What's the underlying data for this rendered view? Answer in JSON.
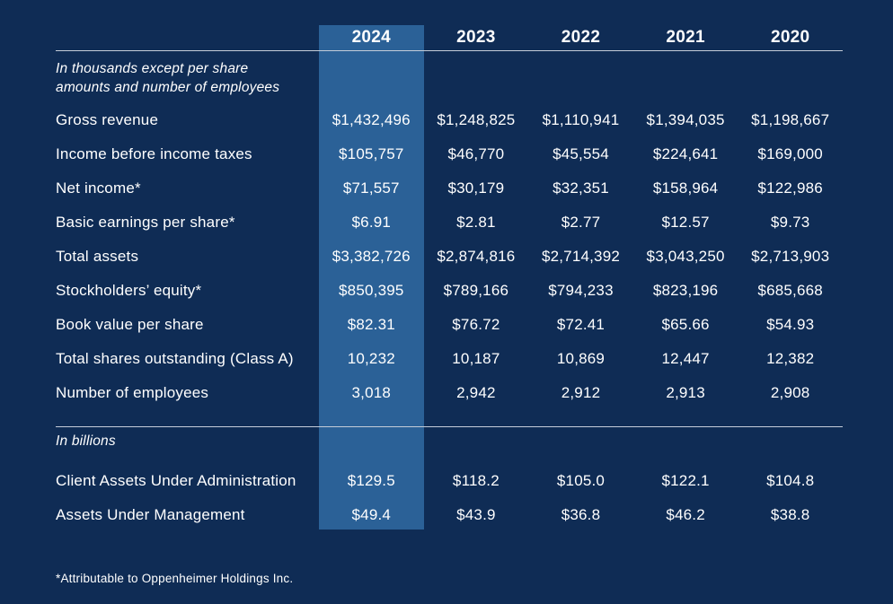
{
  "table": {
    "years": [
      "2024",
      "2023",
      "2022",
      "2021",
      "2020"
    ],
    "highlight_year": "2024",
    "section1_note_line1": "In thousands except per share",
    "section1_note_line2": "amounts and number of employees",
    "rows": [
      {
        "label": "Gross revenue",
        "values": [
          "$1,432,496",
          "$1,248,825",
          "$1,110,941",
          "$1,394,035",
          "$1,198,667"
        ]
      },
      {
        "label": "Income before income taxes",
        "values": [
          "$105,757",
          "$46,770",
          "$45,554",
          "$224,641",
          "$169,000"
        ]
      },
      {
        "label": "Net income*",
        "values": [
          "$71,557",
          "$30,179",
          "$32,351",
          "$158,964",
          "$122,986"
        ]
      },
      {
        "label": "Basic earnings per share*",
        "values": [
          "$6.91",
          "$2.81",
          "$2.77",
          "$12.57",
          "$9.73"
        ]
      },
      {
        "label": "Total assets",
        "values": [
          "$3,382,726",
          "$2,874,816",
          "$2,714,392",
          "$3,043,250",
          "$2,713,903"
        ]
      },
      {
        "label": "Stockholders’ equity*",
        "values": [
          "$850,395",
          "$789,166",
          "$794,233",
          "$823,196",
          "$685,668"
        ]
      },
      {
        "label": "Book value per share",
        "values": [
          "$82.31",
          "$76.72",
          "$72.41",
          "$65.66",
          "$54.93"
        ]
      },
      {
        "label": "Total shares outstanding (Class A)",
        "values": [
          "10,232",
          "10,187",
          "10,869",
          "12,447",
          "12,382"
        ]
      },
      {
        "label": "Number of employees",
        "values": [
          "3,018",
          "2,942",
          "2,912",
          "2,913",
          "2,908"
        ]
      }
    ],
    "section2_note": "In billions",
    "rows2": [
      {
        "label": "Client Assets Under Administration",
        "values": [
          "$129.5",
          "$118.2",
          "$105.0",
          "$122.1",
          "$104.8"
        ]
      },
      {
        "label": "Assets Under Management",
        "values": [
          "$49.4",
          "$43.9",
          "$36.8",
          "$46.2",
          "$38.8"
        ]
      }
    ],
    "footnote": "*Attributable to Oppenheimer Holdings Inc."
  },
  "colors": {
    "background": "#0f2c55",
    "highlight": "#2b6197",
    "rule": "#c5cdd9",
    "text": "#ffffff"
  }
}
